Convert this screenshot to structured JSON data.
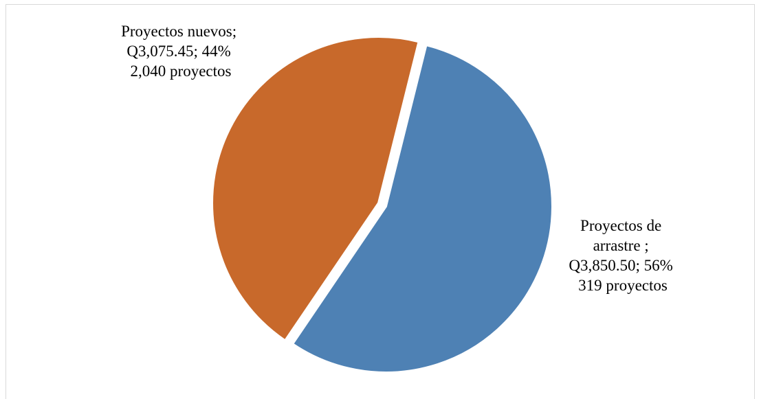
{
  "chart_data": {
    "type": "pie",
    "title": "",
    "slices": [
      {
        "name": "Proyectos de arrastre",
        "value": 3850.5,
        "percent": 56,
        "color": "#4e81b4",
        "label_lines": [
          "Proyectos de",
          "arrastre ;",
          "Q3,850.50; 56%",
          "319 proyectos"
        ]
      },
      {
        "name": "Proyectos nuevos",
        "value": 3075.45,
        "percent": 44,
        "color": "#c8692b",
        "label_lines": [
          "Proyectos nuevos;",
          "Q3,075.45; 44%",
          "2,040 proyectos"
        ]
      }
    ],
    "start_angle_deg": 14,
    "exploded": true,
    "legend": "none"
  }
}
